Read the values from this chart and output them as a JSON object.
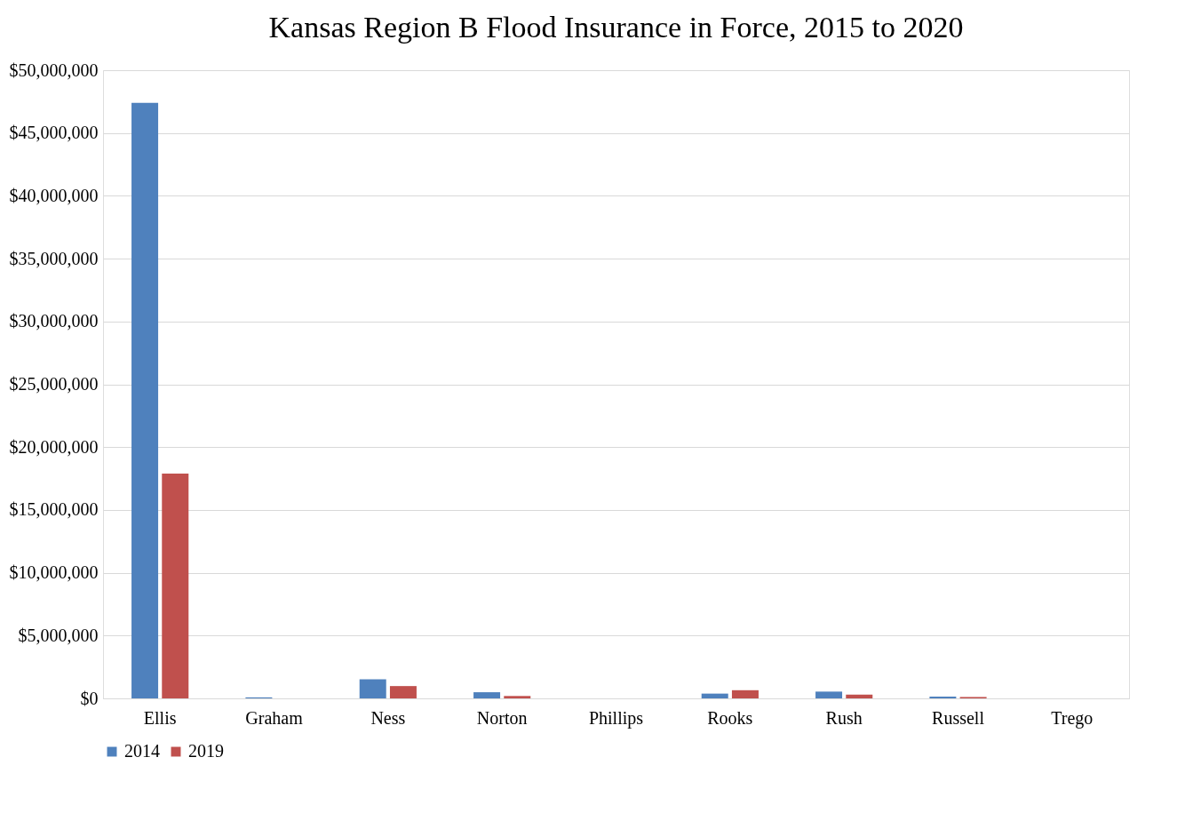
{
  "chart_data": {
    "type": "bar",
    "title": "Kansas Region B Flood Insurance in Force, 2015 to 2020",
    "categories": [
      "Ellis",
      "Graham",
      "Ness",
      "Norton",
      "Phillips",
      "Rooks",
      "Rush",
      "Russell",
      "Trego"
    ],
    "series": [
      {
        "name": "2014",
        "color": "#4f81bd",
        "values": [
          47400000,
          80000,
          1520000,
          490000,
          0,
          380000,
          540000,
          140000,
          0
        ]
      },
      {
        "name": "2019",
        "color": "#c0504d",
        "values": [
          17900000,
          0,
          980000,
          190000,
          0,
          650000,
          300000,
          110000,
          0
        ]
      }
    ],
    "ylim": [
      0,
      50000000
    ],
    "yticks": [
      {
        "value": 0,
        "label": "$0"
      },
      {
        "value": 5000000,
        "label": "$5,000,000"
      },
      {
        "value": 10000000,
        "label": "$10,000,000"
      },
      {
        "value": 15000000,
        "label": "$15,000,000"
      },
      {
        "value": 20000000,
        "label": "$20,000,000"
      },
      {
        "value": 25000000,
        "label": "$25,000,000"
      },
      {
        "value": 30000000,
        "label": "$30,000,000"
      },
      {
        "value": 35000000,
        "label": "$35,000,000"
      },
      {
        "value": 40000000,
        "label": "$40,000,000"
      },
      {
        "value": 45000000,
        "label": "$45,000,000"
      },
      {
        "value": 50000000,
        "label": "$50,000,000"
      }
    ],
    "grid": "y",
    "legend": "bottom"
  }
}
